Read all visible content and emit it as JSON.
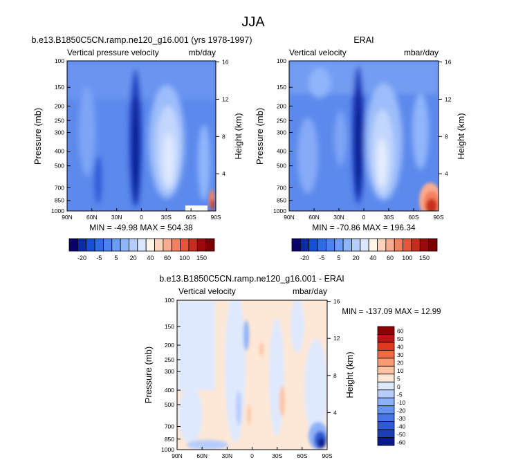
{
  "figure": {
    "main_title": "JJA"
  },
  "colors": {
    "panel_scale": [
      "#09006b",
      "#0b2aa3",
      "#1350d6",
      "#2d6ae6",
      "#4a83f0",
      "#6b9cf6",
      "#8fb5fa",
      "#b5cdfc",
      "#dbe7fe",
      "#fff5e9",
      "#fcd3bd",
      "#f9ac8f",
      "#f3805f",
      "#e6573a",
      "#c72d1f",
      "#9a0a0a",
      "#7a0000"
    ],
    "diff_scale": [
      "#0a1a8c",
      "#1d3db3",
      "#2f5ad1",
      "#4676e6",
      "#6794f2",
      "#8db1f8",
      "#b6ccfb",
      "#dde8fd",
      "#fde7d4",
      "#fcc4a3",
      "#f99a73",
      "#f06a45",
      "#de3a22",
      "#b91414",
      "#8e0000"
    ],
    "field_base": "#5c89ec",
    "diff_base": "#fde7d6"
  },
  "chart_data": [
    {
      "type": "heatmap",
      "title": "b.e13.B1850C5CN.ramp.ne120_g16.001 (yrs 1978-1997)",
      "left_label": "Vertical pressure velocity",
      "right_label": "mb/day",
      "xlabel": "",
      "ylabel": "Pressure (mb)",
      "y2label": "Height (km)",
      "x_ticks": [
        "90N",
        "60N",
        "30N",
        "0",
        "30S",
        "60S",
        "90S"
      ],
      "y_ticks": [
        100,
        150,
        200,
        250,
        300,
        400,
        500,
        700,
        850,
        1000
      ],
      "y2_ticks": [
        4,
        8,
        12,
        16
      ],
      "stats": "MIN = -49.98  MAX = 504.38",
      "colorbar_labels": [
        "-20",
        "-5",
        "5",
        "20",
        "40",
        "60",
        "100",
        "150"
      ]
    },
    {
      "type": "heatmap",
      "title": "ERAI",
      "left_label": "Vertical velocity",
      "right_label": "mbar/day",
      "xlabel": "",
      "ylabel": "Pressure (mb)",
      "y2label": "Height (km)",
      "x_ticks": [
        "90N",
        "60N",
        "30N",
        "0",
        "30S",
        "60S",
        "90S"
      ],
      "y_ticks": [
        100,
        150,
        200,
        250,
        300,
        400,
        500,
        700,
        850,
        1000
      ],
      "y2_ticks": [
        4,
        8,
        12,
        16
      ],
      "stats": "MIN = -70.86  MAX = 196.34",
      "colorbar_labels": [
        "-20",
        "-5",
        "5",
        "20",
        "40",
        "60",
        "100",
        "150"
      ]
    },
    {
      "type": "heatmap",
      "title": "b.e13.B1850C5CN.ramp.ne120_g16.001 - ERAI",
      "left_label": "Vertical velocity",
      "right_label": "mbar/day",
      "xlabel": "",
      "ylabel": "Pressure (mb)",
      "y2label": "Height (km)",
      "x_ticks": [
        "90N",
        "60N",
        "30N",
        "0",
        "30S",
        "60S",
        "90S"
      ],
      "y_ticks": [
        100,
        150,
        200,
        250,
        300,
        400,
        500,
        700,
        850,
        1000
      ],
      "y2_ticks": [
        4,
        8,
        12,
        16
      ],
      "stats": "MIN = -137.09  MAX =  12.99",
      "colorbar_labels": [
        "60",
        "50",
        "40",
        "30",
        "20",
        "10",
        "5",
        "0",
        "-5",
        "-10",
        "-20",
        "-30",
        "-40",
        "-50",
        "-60"
      ]
    }
  ]
}
